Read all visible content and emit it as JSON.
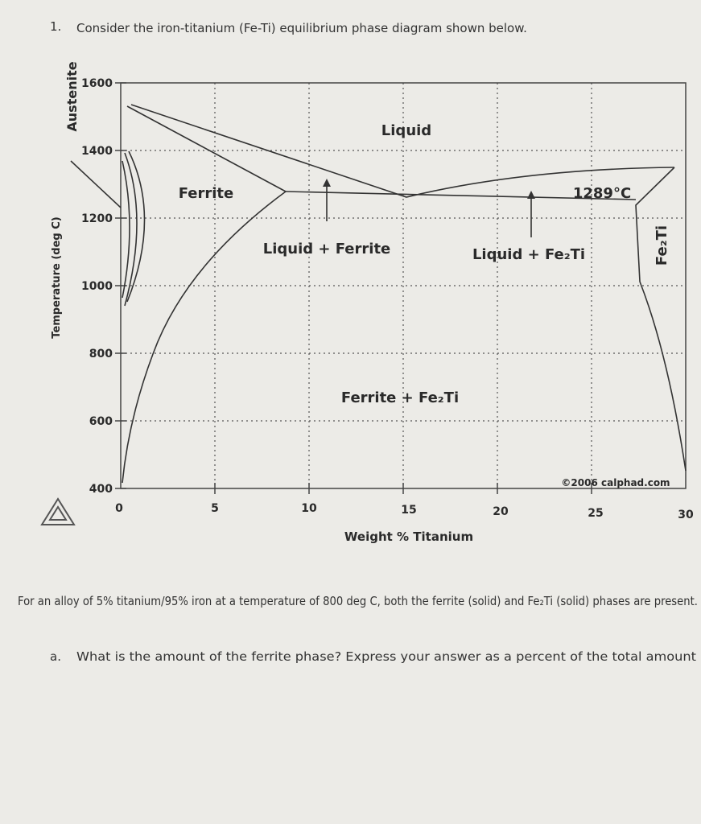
{
  "question": {
    "number": "1.",
    "text": "Consider the iron-titanium (Fe-Ti) equilibrium phase diagram shown below."
  },
  "diagram": {
    "y_axis_label": "Temperature (deg C)",
    "x_axis_label": "Weight % Titanium",
    "y_ticks": [
      "1600",
      "1400",
      "1200",
      "1000",
      "800",
      "600",
      "400"
    ],
    "x_ticks": [
      "0",
      "5",
      "10",
      "15",
      "20",
      "25",
      "30"
    ],
    "regions": [
      "Liquid",
      "Ferrite",
      "Liquid + Ferrite",
      "Liquid + Fe₂Ti",
      "Ferrite + Fe₂Ti",
      "Fe₂Ti"
    ],
    "eutectic_label": "1289°C",
    "austenite_label": "Austenite",
    "copyright": "©2006 calphad.com"
  },
  "paragraph": "For an alloy of 5% titanium/95% iron at a temperature of 800 deg C, both the ferrite (solid) and Fe₂Ti (solid) phases are present.",
  "part_a": {
    "label": "a.",
    "text": "What is the amount of the ferrite phase? Express your answer as a percent of the total amount"
  }
}
